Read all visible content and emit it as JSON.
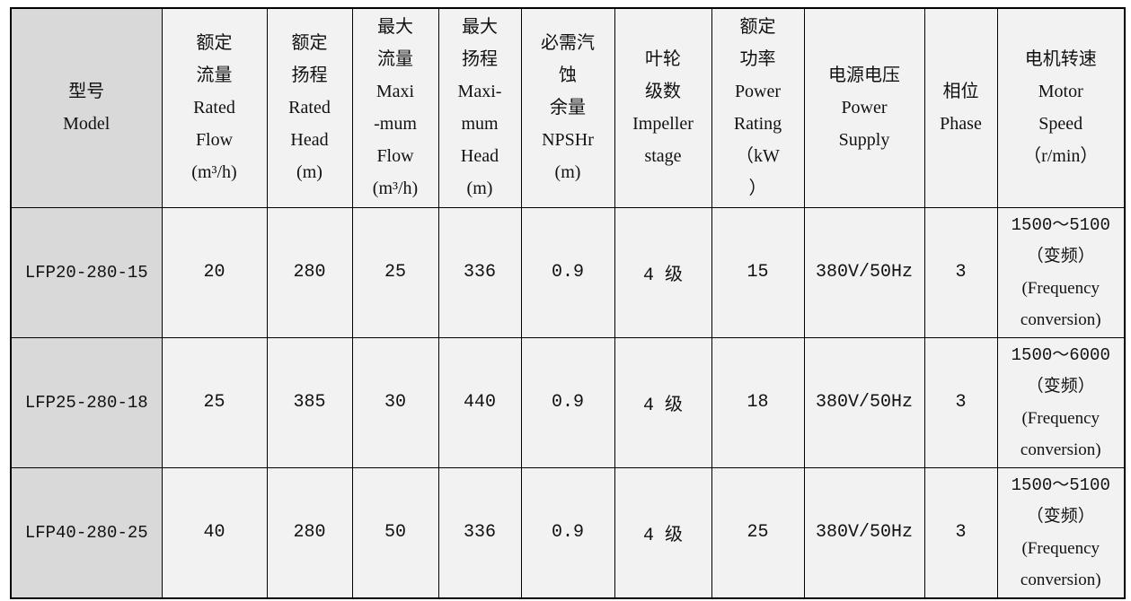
{
  "table": {
    "columns": [
      {
        "id": "model",
        "lines": [
          "型号",
          "Model"
        ]
      },
      {
        "id": "rated-flow",
        "lines": [
          "额定",
          "流量",
          "Rated",
          "Flow",
          "(m³/h)"
        ]
      },
      {
        "id": "rated-head",
        "lines": [
          "额定",
          "扬程",
          "Rated",
          "Head",
          "(m)"
        ]
      },
      {
        "id": "max-flow",
        "lines": [
          "最大",
          "流量",
          "Maxi",
          "-mum",
          "Flow",
          "(m³/h)"
        ]
      },
      {
        "id": "max-head",
        "lines": [
          "最大",
          "扬程",
          "Maxi-",
          "mum",
          "Head",
          "(m)"
        ]
      },
      {
        "id": "npshr",
        "lines": [
          "必需汽",
          "蚀",
          "余量",
          "NPSHr",
          "(m)"
        ]
      },
      {
        "id": "impeller-stage",
        "lines": [
          "叶轮",
          "级数",
          "Impeller",
          "stage"
        ]
      },
      {
        "id": "power-rating",
        "lines": [
          "额定",
          "功率",
          "Power",
          "Rating",
          "（kW",
          "）"
        ]
      },
      {
        "id": "power-supply",
        "lines": [
          "电源电压",
          "Power",
          "Supply"
        ]
      },
      {
        "id": "phase",
        "lines": [
          "相位",
          "Phase"
        ]
      },
      {
        "id": "motor-speed",
        "lines": [
          "电机转速",
          "Motor",
          "Speed",
          "（r/min）"
        ]
      }
    ],
    "rows": [
      {
        "cells": [
          "LFP20-280-15",
          "20",
          "280",
          "25",
          "336",
          "0.9",
          "4 级",
          "15",
          "380V/50Hz",
          "3",
          [
            "1500～5100",
            "（变频）",
            "(Frequency",
            "conversion)"
          ]
        ]
      },
      {
        "cells": [
          "LFP25-280-18",
          "25",
          "385",
          "30",
          "440",
          "0.9",
          "4 级",
          "18",
          "380V/50Hz",
          "3",
          [
            "1500～6000",
            "（变频）",
            "(Frequency",
            "conversion)"
          ]
        ]
      },
      {
        "cells": [
          "LFP40-280-25",
          "40",
          "280",
          "50",
          "336",
          "0.9",
          "4 级",
          "25",
          "380V/50Hz",
          "3",
          [
            "1500～5100",
            "（变频）",
            "(Frequency",
            "conversion)"
          ]
        ]
      }
    ],
    "colors": {
      "model_column_bg": "#d9d9d9",
      "cell_bg": "#f2f2f2",
      "border": "#000000",
      "text": "#111111"
    }
  }
}
